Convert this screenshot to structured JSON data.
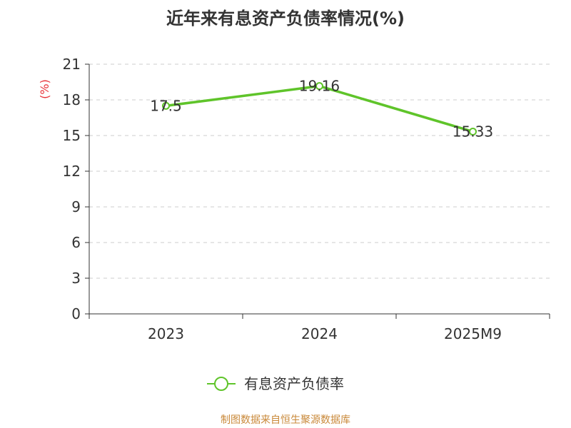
{
  "title": "近年来有息资产负债率情况(%)",
  "chart_data": {
    "type": "line",
    "categories": [
      "2023",
      "2024",
      "2025M9"
    ],
    "series": [
      {
        "name": "有息资产负债率",
        "values": [
          17.5,
          19.16,
          15.33
        ],
        "labels": [
          "17.5",
          "19.16",
          "15.33"
        ]
      }
    ],
    "ylabel": "(%)",
    "ylim": [
      0,
      21
    ],
    "yticks": [
      0,
      3,
      6,
      9,
      12,
      15,
      18,
      21
    ],
    "grid": true,
    "legend_position": "bottom",
    "colors": {
      "line": "#5fc42a",
      "ylabel": "#e8343a",
      "grid": "#cccccc",
      "axis": "#333333"
    }
  },
  "source": "制图数据来自恒生聚源数据库"
}
